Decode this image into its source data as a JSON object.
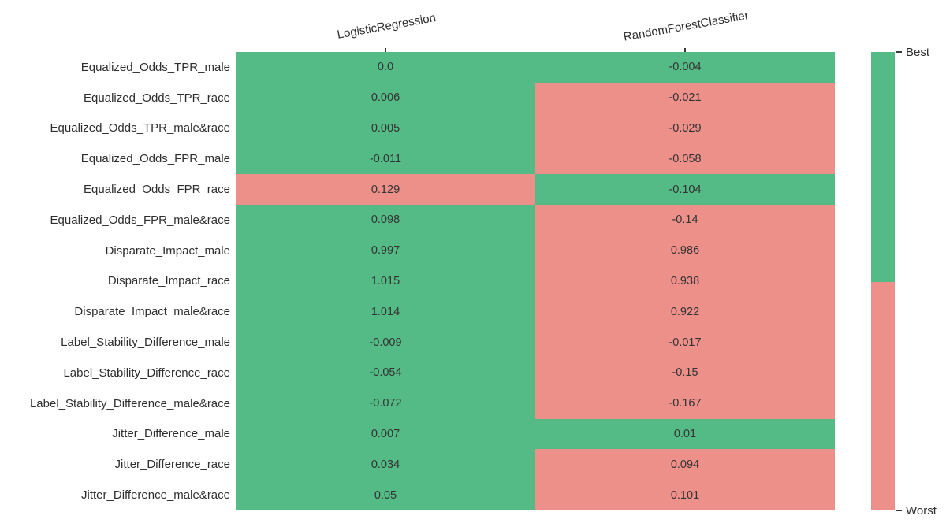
{
  "chart_data": {
    "type": "heatmap",
    "title": "",
    "columns": [
      "LogisticRegression",
      "RandomForestClassifier"
    ],
    "rows": [
      {
        "label": "Equalized_Odds_TPR_male",
        "values": [
          0.0,
          -0.004
        ],
        "display": [
          "0.0",
          "-0.004"
        ],
        "status": [
          "best",
          "best"
        ]
      },
      {
        "label": "Equalized_Odds_TPR_race",
        "values": [
          0.006,
          -0.021
        ],
        "display": [
          "0.006",
          "-0.021"
        ],
        "status": [
          "best",
          "worst"
        ]
      },
      {
        "label": "Equalized_Odds_TPR_male&race",
        "values": [
          0.005,
          -0.029
        ],
        "display": [
          "0.005",
          "-0.029"
        ],
        "status": [
          "best",
          "worst"
        ]
      },
      {
        "label": "Equalized_Odds_FPR_male",
        "values": [
          -0.011,
          -0.058
        ],
        "display": [
          "-0.011",
          "-0.058"
        ],
        "status": [
          "best",
          "worst"
        ]
      },
      {
        "label": "Equalized_Odds_FPR_race",
        "values": [
          0.129,
          -0.104
        ],
        "display": [
          "0.129",
          "-0.104"
        ],
        "status": [
          "worst",
          "best"
        ]
      },
      {
        "label": "Equalized_Odds_FPR_male&race",
        "values": [
          0.098,
          -0.14
        ],
        "display": [
          "0.098",
          "-0.14"
        ],
        "status": [
          "best",
          "worst"
        ]
      },
      {
        "label": "Disparate_Impact_male",
        "values": [
          0.997,
          0.986
        ],
        "display": [
          "0.997",
          "0.986"
        ],
        "status": [
          "best",
          "worst"
        ]
      },
      {
        "label": "Disparate_Impact_race",
        "values": [
          1.015,
          0.938
        ],
        "display": [
          "1.015",
          "0.938"
        ],
        "status": [
          "best",
          "worst"
        ]
      },
      {
        "label": "Disparate_Impact_male&race",
        "values": [
          1.014,
          0.922
        ],
        "display": [
          "1.014",
          "0.922"
        ],
        "status": [
          "best",
          "worst"
        ]
      },
      {
        "label": "Label_Stability_Difference_male",
        "values": [
          -0.009,
          -0.017
        ],
        "display": [
          "-0.009",
          "-0.017"
        ],
        "status": [
          "best",
          "worst"
        ]
      },
      {
        "label": "Label_Stability_Difference_race",
        "values": [
          -0.054,
          -0.15
        ],
        "display": [
          "-0.054",
          "-0.15"
        ],
        "status": [
          "best",
          "worst"
        ]
      },
      {
        "label": "Label_Stability_Difference_male&race",
        "values": [
          -0.072,
          -0.167
        ],
        "display": [
          "-0.072",
          "-0.167"
        ],
        "status": [
          "best",
          "worst"
        ]
      },
      {
        "label": "Jitter_Difference_male",
        "values": [
          0.007,
          0.01
        ],
        "display": [
          "0.007",
          "0.01"
        ],
        "status": [
          "best",
          "best"
        ]
      },
      {
        "label": "Jitter_Difference_race",
        "values": [
          0.034,
          0.094
        ],
        "display": [
          "0.034",
          "0.094"
        ],
        "status": [
          "best",
          "worst"
        ]
      },
      {
        "label": "Jitter_Difference_male&race",
        "values": [
          0.05,
          0.101
        ],
        "display": [
          "0.05",
          "0.101"
        ],
        "status": [
          "best",
          "worst"
        ]
      }
    ],
    "palette": {
      "best": "#54BB86",
      "worst": "#ED908A"
    },
    "colorbar": {
      "top_label": "Best",
      "bottom_label": "Worst",
      "segments": [
        "best",
        "worst"
      ]
    },
    "legend_position": "right",
    "grid": false,
    "background": "#ffffff"
  }
}
